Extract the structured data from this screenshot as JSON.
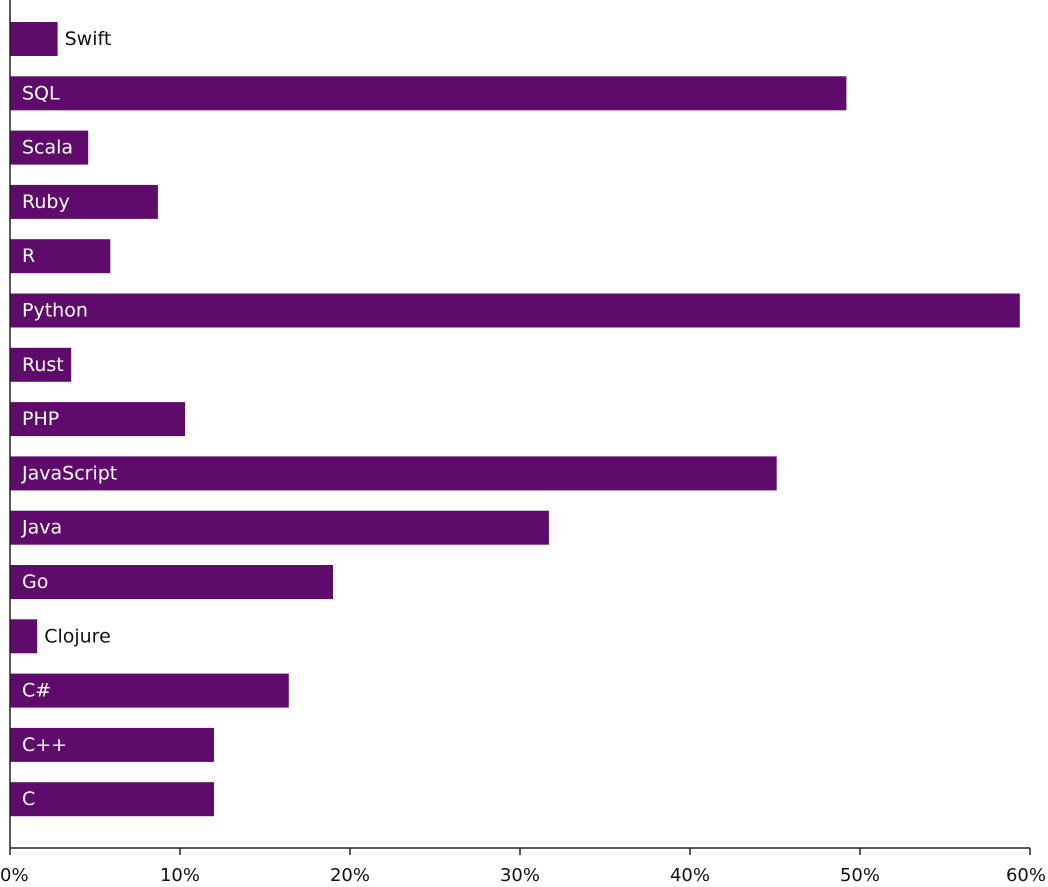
{
  "chart_data": {
    "type": "bar",
    "orientation": "horizontal",
    "categories": [
      "Swift",
      "SQL",
      "Scala",
      "Ruby",
      "R",
      "Python",
      "Rust",
      "PHP",
      "JavaScript",
      "Java",
      "Go",
      "Clojure",
      "C#",
      "C++",
      "C"
    ],
    "values": [
      2.8,
      49.2,
      4.6,
      8.7,
      5.9,
      59.4,
      3.6,
      10.3,
      45.1,
      31.7,
      19.0,
      1.6,
      16.4,
      12.0,
      12.0
    ],
    "xlim": [
      0,
      60
    ],
    "x_ticks": [
      "0%",
      "10%",
      "20%",
      "30%",
      "40%",
      "50%",
      "60%"
    ],
    "title": "",
    "xlabel": "",
    "ylabel": "",
    "grid": false,
    "legend": "none",
    "bar_color": "#5f0b6b",
    "inside_label_color": "#ffffff",
    "outside_label_color": "#111111"
  }
}
